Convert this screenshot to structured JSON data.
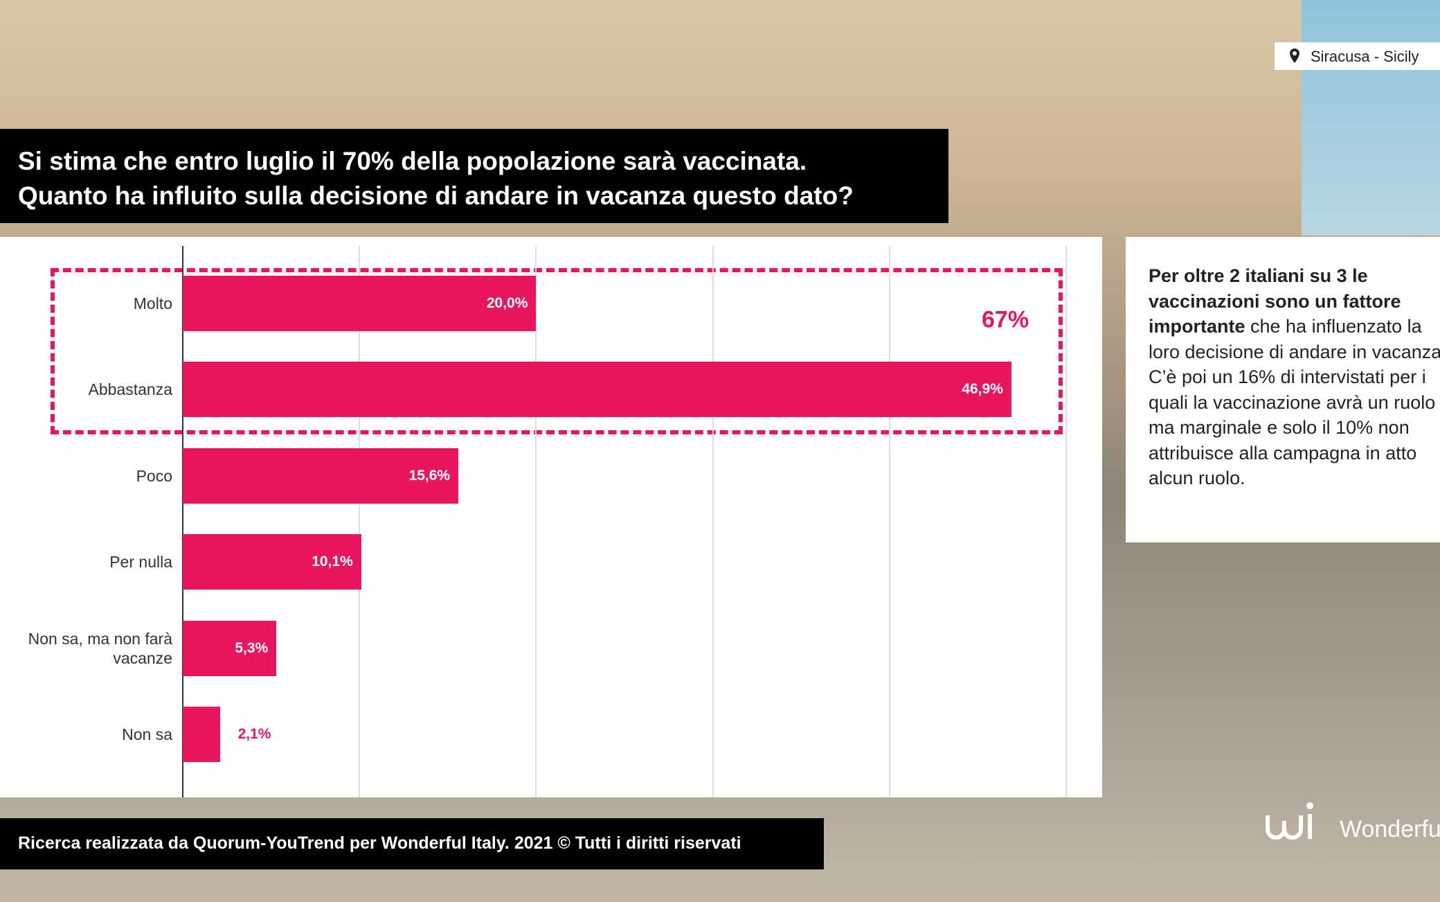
{
  "location": "Siracusa  - Sicily",
  "chart_data": {
    "type": "bar",
    "orientation": "horizontal",
    "title": [
      "Si stima che entro luglio il 70% della popolazione sarà vaccinata.",
      "Quanto ha influito sulla decisione di andare in vacanza questo dato?"
    ],
    "categories": [
      "Molto",
      "Abbastanza",
      "Poco",
      "Per nulla",
      "Non sa, ma non farà vacanze",
      "Non sa"
    ],
    "values": [
      20.0,
      46.9,
      15.6,
      10.1,
      5.3,
      2.1
    ],
    "value_labels": [
      "20,0%",
      "46,9%",
      "15,6%",
      "10,1%",
      "5,3%",
      "2,1%"
    ],
    "color": "#e8175d",
    "xlim": [
      0,
      50
    ],
    "xticks": [
      0,
      10,
      20,
      30,
      40,
      50
    ],
    "grid": true,
    "annotation": "67%"
  },
  "side_note": {
    "bold": "Per oltre 2 italiani su 3 le vaccinazioni sono un fattore importante",
    "text": " che ha influenzato la loro decisione di andare in vacanza. C’è poi un 16% di intervistati per i quali la vaccinazione avrà un ruolo ma marginale e solo il 10% non attribuisce alla campagna in atto alcun ruolo."
  },
  "footer": "Ricerca realizzata da Quorum-YouTrend per  Wonderful Italy. 2021 © Tutti i diritti riservati",
  "brand": "Wonderful"
}
